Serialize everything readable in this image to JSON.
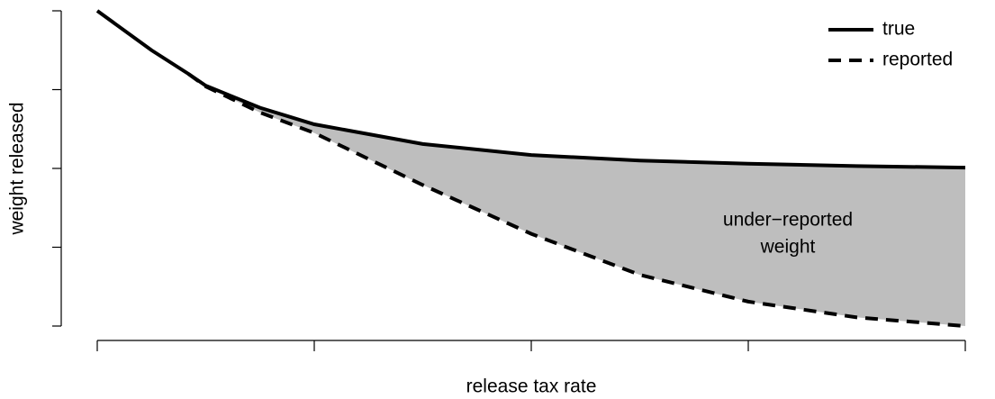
{
  "chart_data": {
    "type": "line",
    "xlabel": "release tax rate",
    "ylabel": "weight released",
    "x": [
      0,
      0.25,
      0.42,
      0.5,
      0.75,
      1,
      1.5,
      2,
      2.5,
      3,
      3.5,
      4
    ],
    "series": [
      {
        "name": "true",
        "color": "#000000",
        "line_style": "solid",
        "values": [
          4.0,
          3.5,
          3.2,
          3.05,
          2.77,
          2.56,
          2.31,
          2.17,
          2.1,
          2.06,
          2.03,
          2.01
        ]
      },
      {
        "name": "reported",
        "color": "#000000",
        "line_style": "dashed",
        "values": [
          null,
          null,
          3.2,
          3.04,
          2.71,
          2.45,
          1.79,
          1.17,
          0.65,
          0.31,
          0.11,
          0
        ]
      }
    ],
    "fill_color": "#bebebe",
    "annotation": [
      "under−reported",
      "weight"
    ],
    "xlim": [
      0,
      4
    ],
    "xticks": [
      0,
      1,
      2,
      3,
      4
    ],
    "ylim": [
      0,
      4
    ],
    "yticks": [
      0,
      1,
      2,
      3,
      4
    ],
    "legend": "topright",
    "grid": false
  }
}
